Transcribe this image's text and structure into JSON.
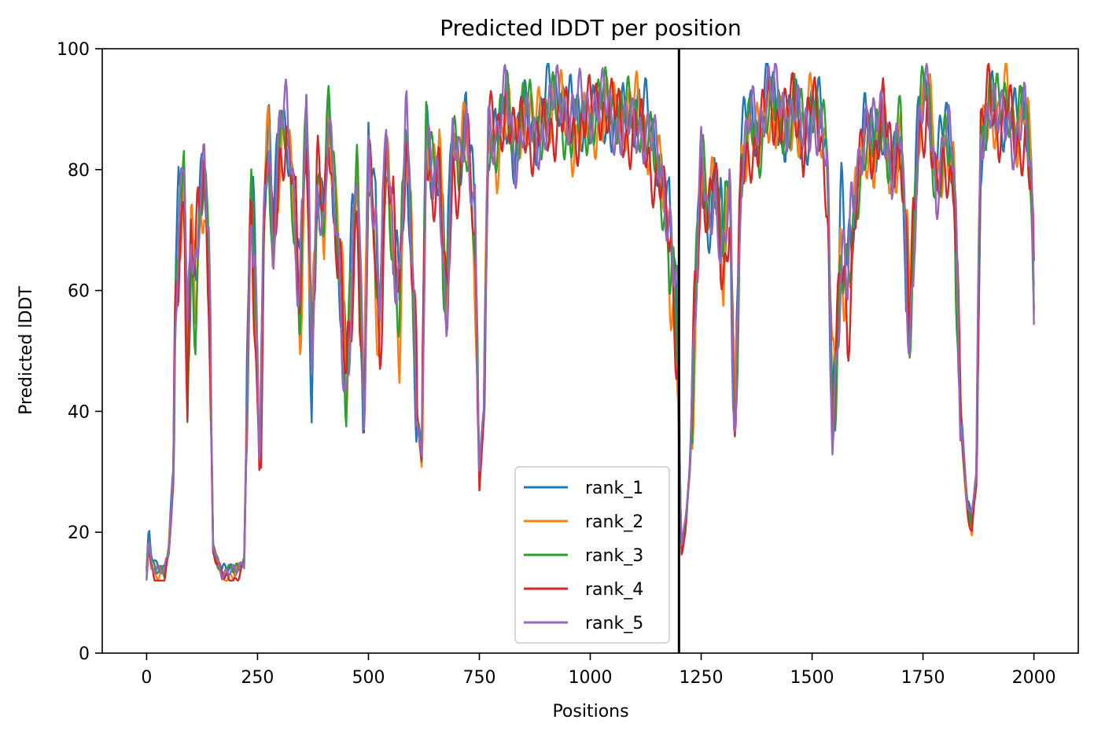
{
  "chart_data": {
    "type": "line",
    "title": "Predicted lDDT per position",
    "xlabel": "Positions",
    "ylabel": "Predicted lDDT",
    "xlim": [
      -100,
      2100
    ],
    "ylim": [
      0,
      100
    ],
    "xticks": [
      0,
      250,
      500,
      750,
      1000,
      1250,
      1500,
      1750,
      2000
    ],
    "yticks": [
      0,
      20,
      40,
      60,
      80,
      100
    ],
    "grid": false,
    "legend_position": "lower-center",
    "vertical_line_x": 1200,
    "series": [
      {
        "name": "rank_1",
        "color": "#1f77b4",
        "offset": 0.0,
        "phase": 0.0
      },
      {
        "name": "rank_2",
        "color": "#ff7f0e",
        "offset": -1.2,
        "phase": 1.3
      },
      {
        "name": "rank_3",
        "color": "#2ca02c",
        "offset": -0.8,
        "phase": 2.1
      },
      {
        "name": "rank_4",
        "color": "#d62728",
        "offset": -1.8,
        "phase": 3.4
      },
      {
        "name": "rank_5",
        "color": "#9467bd",
        "offset": -0.4,
        "phase": 4.7
      }
    ],
    "profile": [
      [
        0,
        14
      ],
      [
        5,
        20
      ],
      [
        10,
        16
      ],
      [
        20,
        14
      ],
      [
        40,
        14
      ],
      [
        50,
        18
      ],
      [
        60,
        30
      ],
      [
        65,
        60
      ],
      [
        75,
        72
      ],
      [
        85,
        80
      ],
      [
        92,
        45
      ],
      [
        100,
        70
      ],
      [
        110,
        62
      ],
      [
        120,
        75
      ],
      [
        130,
        80
      ],
      [
        140,
        65
      ],
      [
        150,
        18
      ],
      [
        170,
        14
      ],
      [
        200,
        14
      ],
      [
        220,
        16
      ],
      [
        235,
        78
      ],
      [
        245,
        60
      ],
      [
        255,
        30
      ],
      [
        265,
        75
      ],
      [
        275,
        88
      ],
      [
        285,
        68
      ],
      [
        300,
        85
      ],
      [
        315,
        88
      ],
      [
        330,
        78
      ],
      [
        345,
        58
      ],
      [
        360,
        90
      ],
      [
        372,
        48
      ],
      [
        385,
        80
      ],
      [
        400,
        72
      ],
      [
        410,
        90
      ],
      [
        420,
        78
      ],
      [
        440,
        60
      ],
      [
        450,
        45
      ],
      [
        460,
        60
      ],
      [
        475,
        80
      ],
      [
        490,
        38
      ],
      [
        500,
        85
      ],
      [
        515,
        70
      ],
      [
        525,
        52
      ],
      [
        540,
        85
      ],
      [
        555,
        70
      ],
      [
        570,
        58
      ],
      [
        585,
        88
      ],
      [
        600,
        62
      ],
      [
        610,
        40
      ],
      [
        620,
        33
      ],
      [
        630,
        87
      ],
      [
        645,
        78
      ],
      [
        660,
        82
      ],
      [
        675,
        58
      ],
      [
        690,
        85
      ],
      [
        705,
        80
      ],
      [
        720,
        90
      ],
      [
        740,
        70
      ],
      [
        750,
        30
      ],
      [
        760,
        40
      ],
      [
        770,
        88
      ],
      [
        790,
        85
      ],
      [
        810,
        92
      ],
      [
        830,
        84
      ],
      [
        850,
        90
      ],
      [
        875,
        86
      ],
      [
        900,
        90
      ],
      [
        930,
        92
      ],
      [
        960,
        88
      ],
      [
        1000,
        90
      ],
      [
        1040,
        91
      ],
      [
        1080,
        88
      ],
      [
        1110,
        90
      ],
      [
        1140,
        84
      ],
      [
        1160,
        80
      ],
      [
        1175,
        72
      ],
      [
        1190,
        60
      ],
      [
        1198,
        50
      ],
      [
        1205,
        18
      ],
      [
        1215,
        22
      ],
      [
        1225,
        32
      ],
      [
        1235,
        55
      ],
      [
        1250,
        82
      ],
      [
        1265,
        72
      ],
      [
        1280,
        80
      ],
      [
        1300,
        65
      ],
      [
        1315,
        78
      ],
      [
        1325,
        35
      ],
      [
        1340,
        82
      ],
      [
        1360,
        88
      ],
      [
        1380,
        86
      ],
      [
        1400,
        94
      ],
      [
        1420,
        90
      ],
      [
        1440,
        88
      ],
      [
        1460,
        92
      ],
      [
        1480,
        85
      ],
      [
        1500,
        92
      ],
      [
        1520,
        88
      ],
      [
        1535,
        80
      ],
      [
        1545,
        40
      ],
      [
        1555,
        50
      ],
      [
        1565,
        70
      ],
      [
        1580,
        60
      ],
      [
        1600,
        78
      ],
      [
        1620,
        88
      ],
      [
        1640,
        84
      ],
      [
        1660,
        90
      ],
      [
        1680,
        80
      ],
      [
        1700,
        86
      ],
      [
        1720,
        55
      ],
      [
        1740,
        88
      ],
      [
        1760,
        94
      ],
      [
        1780,
        78
      ],
      [
        1800,
        86
      ],
      [
        1820,
        80
      ],
      [
        1835,
        40
      ],
      [
        1850,
        25
      ],
      [
        1860,
        22
      ],
      [
        1870,
        30
      ],
      [
        1880,
        85
      ],
      [
        1900,
        93
      ],
      [
        1920,
        88
      ],
      [
        1940,
        92
      ],
      [
        1960,
        86
      ],
      [
        1980,
        90
      ],
      [
        1995,
        80
      ],
      [
        2000,
        60
      ]
    ]
  },
  "legend": {
    "items": [
      "rank_1",
      "rank_2",
      "rank_3",
      "rank_4",
      "rank_5"
    ]
  }
}
